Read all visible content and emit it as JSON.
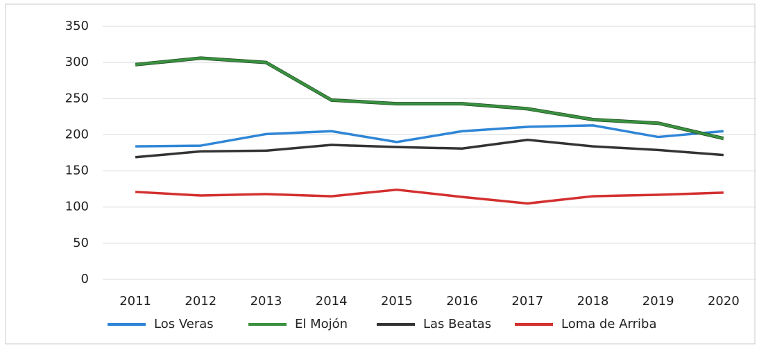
{
  "chart_data": {
    "type": "line",
    "categories": [
      "2011",
      "2012",
      "2013",
      "2014",
      "2015",
      "2016",
      "2017",
      "2018",
      "2019",
      "2020"
    ],
    "series": [
      {
        "name": "Los Veras",
        "color": "#2f86d6",
        "values": [
          184,
          185,
          201,
          205,
          190,
          205,
          211,
          213,
          197,
          205
        ]
      },
      {
        "name": "El Mojón",
        "color": "#3a9140",
        "values": [
          297,
          306,
          300,
          248,
          243,
          243,
          236,
          221,
          216,
          195
        ]
      },
      {
        "name": "Las Beatas",
        "color": "#333333",
        "values": [
          169,
          177,
          178,
          186,
          183,
          181,
          193,
          184,
          179,
          172
        ]
      },
      {
        "name": "Loma de Arriba",
        "color": "#d3302f",
        "values": [
          121,
          116,
          118,
          115,
          124,
          114,
          105,
          115,
          117,
          120
        ]
      }
    ],
    "ylim": [
      0,
      350
    ],
    "yticks": [
      0,
      50,
      100,
      150,
      200,
      250,
      300,
      350
    ],
    "grid": true,
    "legend": "bottom"
  }
}
